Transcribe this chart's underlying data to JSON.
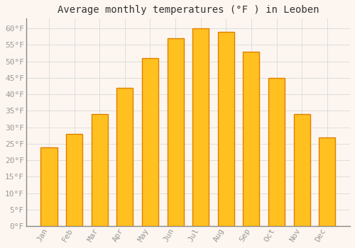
{
  "title": "Average monthly temperatures (°F ) in Leoben",
  "months": [
    "Jan",
    "Feb",
    "Mar",
    "Apr",
    "May",
    "Jun",
    "Jul",
    "Aug",
    "Sep",
    "Oct",
    "Nov",
    "Dec"
  ],
  "values": [
    24,
    28,
    34,
    42,
    51,
    57,
    60,
    59,
    53,
    45,
    34,
    27
  ],
  "bar_color": "#FFC020",
  "bar_edge_color": "#E08000",
  "background_color": "#fdf6f0",
  "grid_color": "#dddddd",
  "ylim": [
    0,
    63
  ],
  "yticks": [
    0,
    5,
    10,
    15,
    20,
    25,
    30,
    35,
    40,
    45,
    50,
    55,
    60
  ],
  "title_fontsize": 10,
  "tick_fontsize": 8,
  "tick_font_color": "#999999",
  "title_color": "#333333"
}
